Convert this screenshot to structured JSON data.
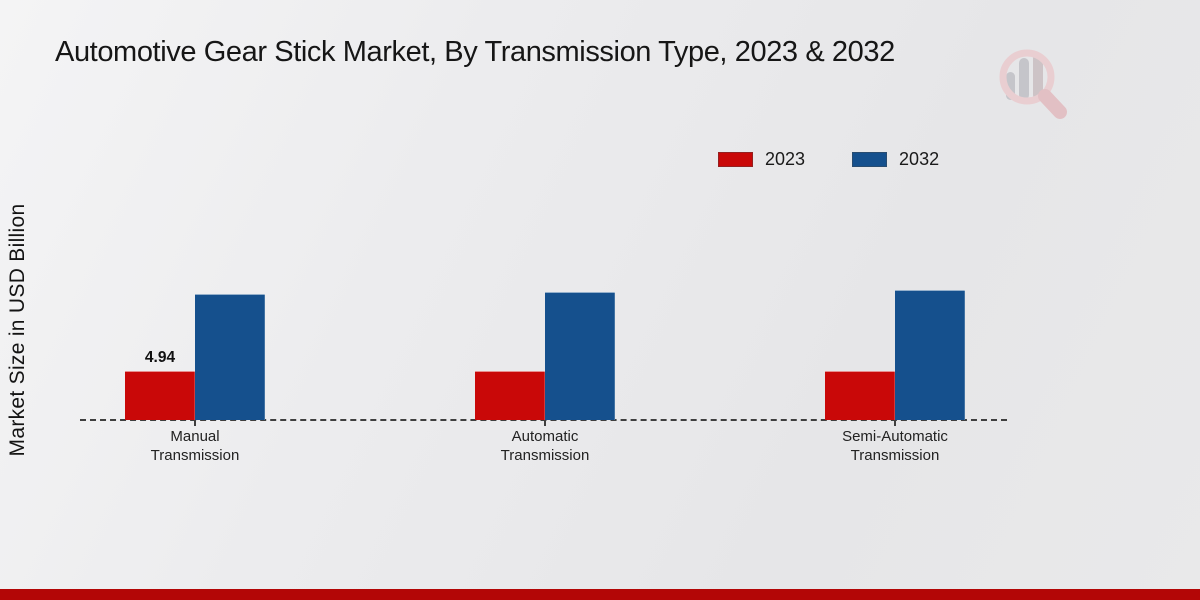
{
  "chart_data": {
    "type": "bar",
    "title": "Automotive Gear Stick Market, By Transmission Type, 2023 & 2032",
    "ylabel": "Market Size in USD Billion",
    "xlabel": "",
    "categories": [
      "Manual Transmission",
      "Automatic Transmission",
      "Semi-Automatic Transmission"
    ],
    "category_lines": [
      [
        "Manual",
        "Transmission"
      ],
      [
        "Automatic",
        "Transmission"
      ],
      [
        "Semi-Automatic",
        "Transmission"
      ]
    ],
    "series": [
      {
        "name": "2023",
        "color": "#c90808",
        "values": [
          4.94,
          4.94,
          4.94
        ],
        "data_labels": [
          "4.94",
          "",
          ""
        ]
      },
      {
        "name": "2032",
        "color": "#15508d",
        "values": [
          12.6,
          12.8,
          13.0
        ],
        "data_labels": [
          "",
          "",
          ""
        ]
      }
    ],
    "legend_position": "top-right",
    "grid": false,
    "axis_line_style": "dashed",
    "ylim": [
      0,
      14
    ]
  },
  "branding": {
    "logo_icon": "magnifier-barchart-watermark",
    "footer_bar_color": "#b30606",
    "logo_ring_color": "#e9ced1",
    "logo_bar_color": "#c5c5ca",
    "logo_handle_color": "#e2c0c4"
  },
  "colors": {
    "background_start": "#f4f4f5",
    "background_end": "#e6e6e8",
    "axis_line": "#3f3f3f",
    "text": "#161616"
  }
}
